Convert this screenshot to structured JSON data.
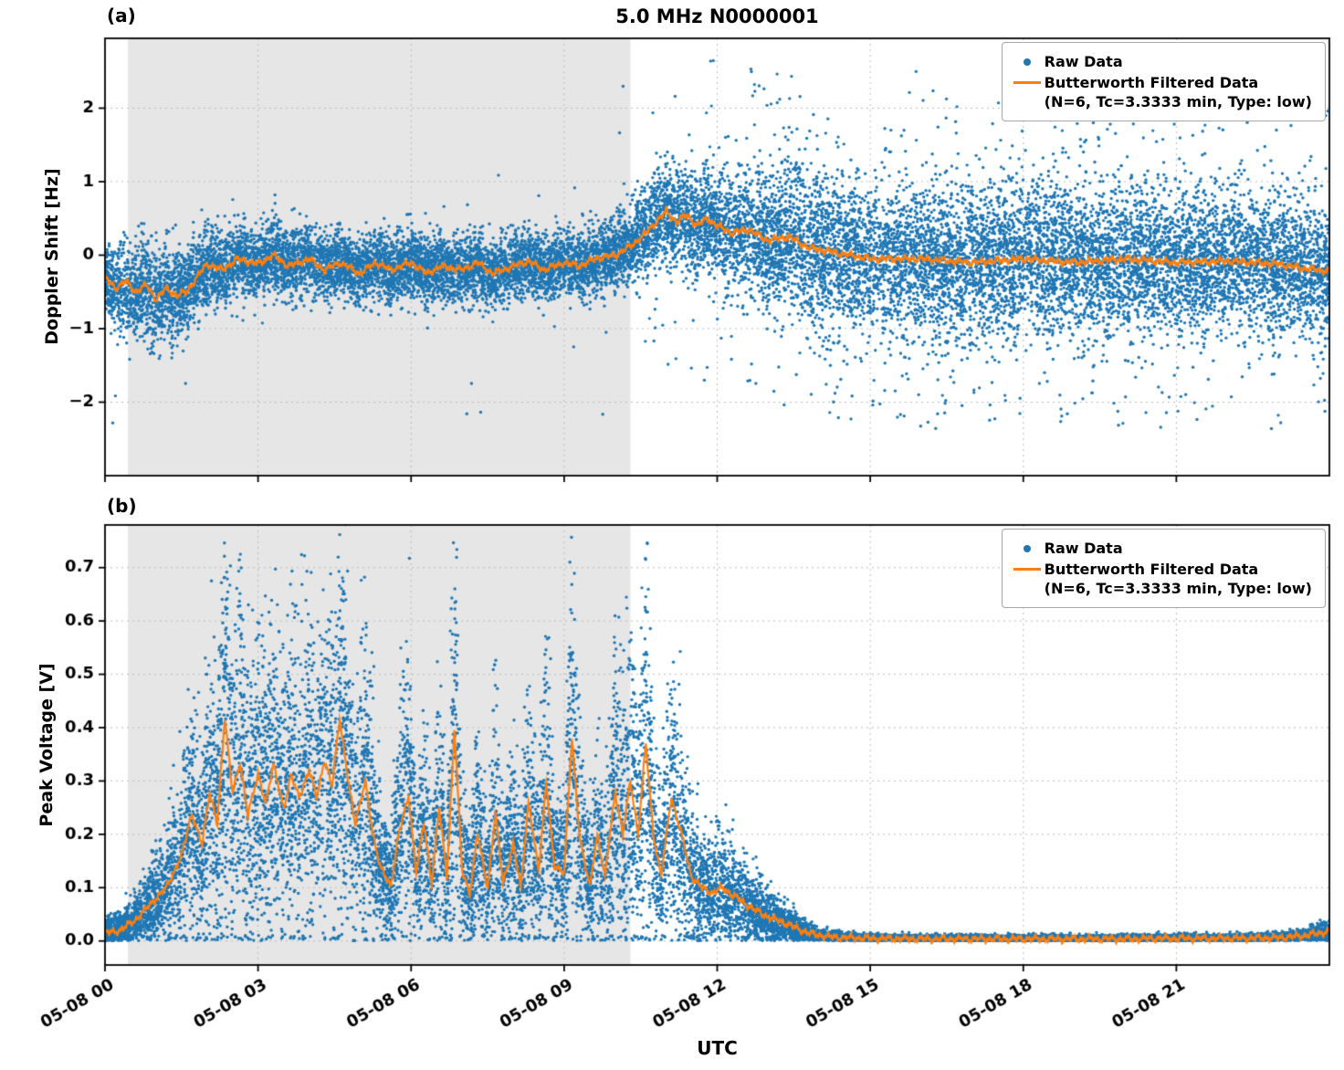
{
  "figure": {
    "title": "5.0 MHz N0000001",
    "xlabel": "UTC",
    "panel_a_label": "(a)",
    "panel_b_label": "(b)"
  },
  "legend": {
    "raw_label": "Raw Data",
    "filtered_label": "Butterworth Filtered Data",
    "filtered_sub": "(N=6, Tc=3.3333 min, Type: low)"
  },
  "colors": {
    "raw": "#1f77b4",
    "filtered": "#ff7f0e",
    "shade": "#e6e6e6",
    "grid": "#bbbbbb",
    "axis": "#000000"
  },
  "chart_data": [
    {
      "type": "scatter",
      "panel": "(a)",
      "title": "5.0 MHz N0000001",
      "ylabel": "Doppler Shift [Hz]",
      "xlim_hours": [
        0,
        24
      ],
      "ylim": [
        -3.0,
        2.95
      ],
      "yticks": [
        -2,
        -1,
        0,
        1,
        2
      ],
      "ytick_labels": [
        "−2",
        "−1",
        "0",
        "1",
        "2"
      ],
      "xticks_hours": [
        0,
        3,
        6,
        9,
        12,
        15,
        18,
        21
      ],
      "xtick_labels": [
        "",
        "",
        "",
        "",
        "",
        "",
        "",
        ""
      ],
      "shaded_hours": [
        0.45,
        10.3
      ],
      "legend_entries": [
        "Raw Data",
        "Butterworth Filtered Data (N=6, Tc=3.3333 min, Type: low)"
      ],
      "filtered_line": {
        "t": [
          0,
          0.2,
          0.4,
          0.6,
          0.8,
          1.0,
          1.2,
          1.4,
          1.6,
          1.8,
          2.0,
          2.3,
          2.6,
          3.0,
          3.3,
          3.6,
          4.0,
          4.3,
          4.6,
          5.0,
          5.3,
          5.6,
          6.0,
          6.3,
          6.6,
          7.0,
          7.3,
          7.6,
          8.0,
          8.3,
          8.6,
          9.0,
          9.3,
          9.6,
          10.0,
          10.3,
          10.6,
          10.8,
          11.0,
          11.2,
          11.4,
          11.6,
          11.8,
          12.0,
          12.3,
          12.6,
          13.0,
          13.4,
          13.8,
          14.2,
          14.6,
          15.0,
          16.0,
          17.0,
          18.0,
          19.0,
          20.0,
          21.0,
          22.0,
          23.0,
          23.5,
          24.0
        ],
        "v": [
          -0.3,
          -0.45,
          -0.35,
          -0.5,
          -0.4,
          -0.6,
          -0.45,
          -0.55,
          -0.5,
          -0.3,
          -0.12,
          -0.2,
          -0.05,
          -0.12,
          0.0,
          -0.15,
          -0.05,
          -0.2,
          -0.1,
          -0.25,
          -0.1,
          -0.2,
          -0.1,
          -0.25,
          -0.15,
          -0.2,
          -0.1,
          -0.25,
          -0.15,
          -0.08,
          -0.2,
          -0.1,
          -0.15,
          -0.05,
          0.0,
          0.12,
          0.3,
          0.45,
          0.6,
          0.45,
          0.55,
          0.4,
          0.5,
          0.4,
          0.3,
          0.35,
          0.2,
          0.25,
          0.1,
          0.05,
          0.0,
          -0.05,
          -0.05,
          -0.1,
          -0.05,
          -0.1,
          -0.05,
          -0.1,
          -0.08,
          -0.12,
          -0.18,
          -0.22
        ],
        "wiggle": 0.05
      },
      "raw_scatter": {
        "n": 18000,
        "mode": "gaussian",
        "sigma_t": [
          0,
          0.5,
          1,
          1.5,
          2,
          3,
          4,
          5,
          6,
          7,
          8,
          9,
          10,
          10.5,
          11,
          11.5,
          12,
          12.5,
          13,
          14,
          15,
          16,
          17,
          18,
          19,
          20,
          21,
          22,
          23,
          24
        ],
        "sigma_v": [
          0.3,
          0.32,
          0.34,
          0.3,
          0.26,
          0.24,
          0.24,
          0.23,
          0.23,
          0.22,
          0.22,
          0.22,
          0.24,
          0.28,
          0.32,
          0.34,
          0.36,
          0.4,
          0.45,
          0.5,
          0.5,
          0.5,
          0.52,
          0.54,
          0.52,
          0.5,
          0.5,
          0.48,
          0.45,
          0.42
        ],
        "outlier_t": [
          0,
          2,
          9,
          10,
          11,
          12,
          13,
          14,
          24
        ],
        "outlier_frac": [
          0.006,
          0.003,
          0.002,
          0.008,
          0.015,
          0.03,
          0.055,
          0.06,
          0.055
        ],
        "outlier_min": 0.6,
        "outlier_span": 1.7
      }
    },
    {
      "type": "scatter",
      "panel": "(b)",
      "title": "",
      "ylabel": "Peak Voltage [V]",
      "xlim_hours": [
        0,
        24
      ],
      "ylim": [
        -0.045,
        0.78
      ],
      "yticks": [
        0.0,
        0.1,
        0.2,
        0.3,
        0.4,
        0.5,
        0.6,
        0.7
      ],
      "ytick_labels": [
        "0.0",
        "0.1",
        "0.2",
        "0.3",
        "0.4",
        "0.5",
        "0.6",
        "0.7"
      ],
      "xticks_hours": [
        0,
        3,
        6,
        9,
        12,
        15,
        18,
        21
      ],
      "xtick_labels": [
        "05-08 00",
        "05-08 03",
        "05-08 06",
        "05-08 09",
        "05-08 12",
        "05-08 15",
        "05-08 18",
        "05-08 21"
      ],
      "shaded_hours": [
        0.45,
        10.3
      ],
      "legend_entries": [
        "Raw Data",
        "Butterworth Filtered Data (N=6, Tc=3.3333 min, Type: low)"
      ],
      "filtered_line": {
        "t": [
          0,
          0.3,
          0.6,
          0.9,
          1.2,
          1.5,
          1.7,
          1.9,
          2.05,
          2.2,
          2.35,
          2.5,
          2.65,
          2.8,
          3.0,
          3.15,
          3.3,
          3.5,
          3.65,
          3.8,
          4.0,
          4.15,
          4.3,
          4.45,
          4.6,
          4.75,
          4.9,
          5.1,
          5.25,
          5.4,
          5.6,
          5.75,
          5.95,
          6.1,
          6.25,
          6.4,
          6.55,
          6.7,
          6.85,
          7.0,
          7.15,
          7.3,
          7.5,
          7.65,
          7.8,
          8.0,
          8.15,
          8.3,
          8.5,
          8.65,
          8.8,
          9.0,
          9.15,
          9.3,
          9.5,
          9.65,
          9.8,
          10.0,
          10.15,
          10.3,
          10.45,
          10.6,
          10.75,
          10.9,
          11.1,
          11.3,
          11.5,
          11.7,
          11.9,
          12.1,
          12.4,
          12.7,
          13.0,
          13.3,
          13.6,
          13.9,
          14.3,
          15.0,
          16.0,
          17.0,
          18.0,
          19.0,
          20.0,
          21.0,
          22.0,
          23.0,
          23.5,
          24.0
        ],
        "v": [
          0.015,
          0.02,
          0.04,
          0.07,
          0.1,
          0.16,
          0.24,
          0.18,
          0.28,
          0.22,
          0.42,
          0.28,
          0.33,
          0.24,
          0.31,
          0.26,
          0.33,
          0.25,
          0.31,
          0.27,
          0.32,
          0.27,
          0.34,
          0.29,
          0.42,
          0.31,
          0.22,
          0.3,
          0.2,
          0.14,
          0.1,
          0.2,
          0.27,
          0.13,
          0.22,
          0.11,
          0.25,
          0.12,
          0.4,
          0.13,
          0.09,
          0.2,
          0.1,
          0.24,
          0.11,
          0.18,
          0.1,
          0.26,
          0.13,
          0.3,
          0.14,
          0.13,
          0.38,
          0.2,
          0.1,
          0.2,
          0.12,
          0.28,
          0.2,
          0.3,
          0.2,
          0.37,
          0.2,
          0.12,
          0.27,
          0.2,
          0.12,
          0.1,
          0.09,
          0.1,
          0.08,
          0.06,
          0.045,
          0.035,
          0.022,
          0.012,
          0.007,
          0.005,
          0.004,
          0.004,
          0.004,
          0.004,
          0.004,
          0.005,
          0.005,
          0.006,
          0.01,
          0.018
        ],
        "wiggle": 0.007
      },
      "raw_scatter": {
        "n": 18000,
        "mode": "multiplicative",
        "rel_sigma": 0.5,
        "abs_t": [
          0,
          13,
          14,
          24
        ],
        "abs_v": [
          0.012,
          0.012,
          0.003,
          0.003
        ],
        "spike_frac": 0.015,
        "spike_mult": 1.6,
        "spike_span": 1.0,
        "floor": 0.0005
      }
    }
  ]
}
